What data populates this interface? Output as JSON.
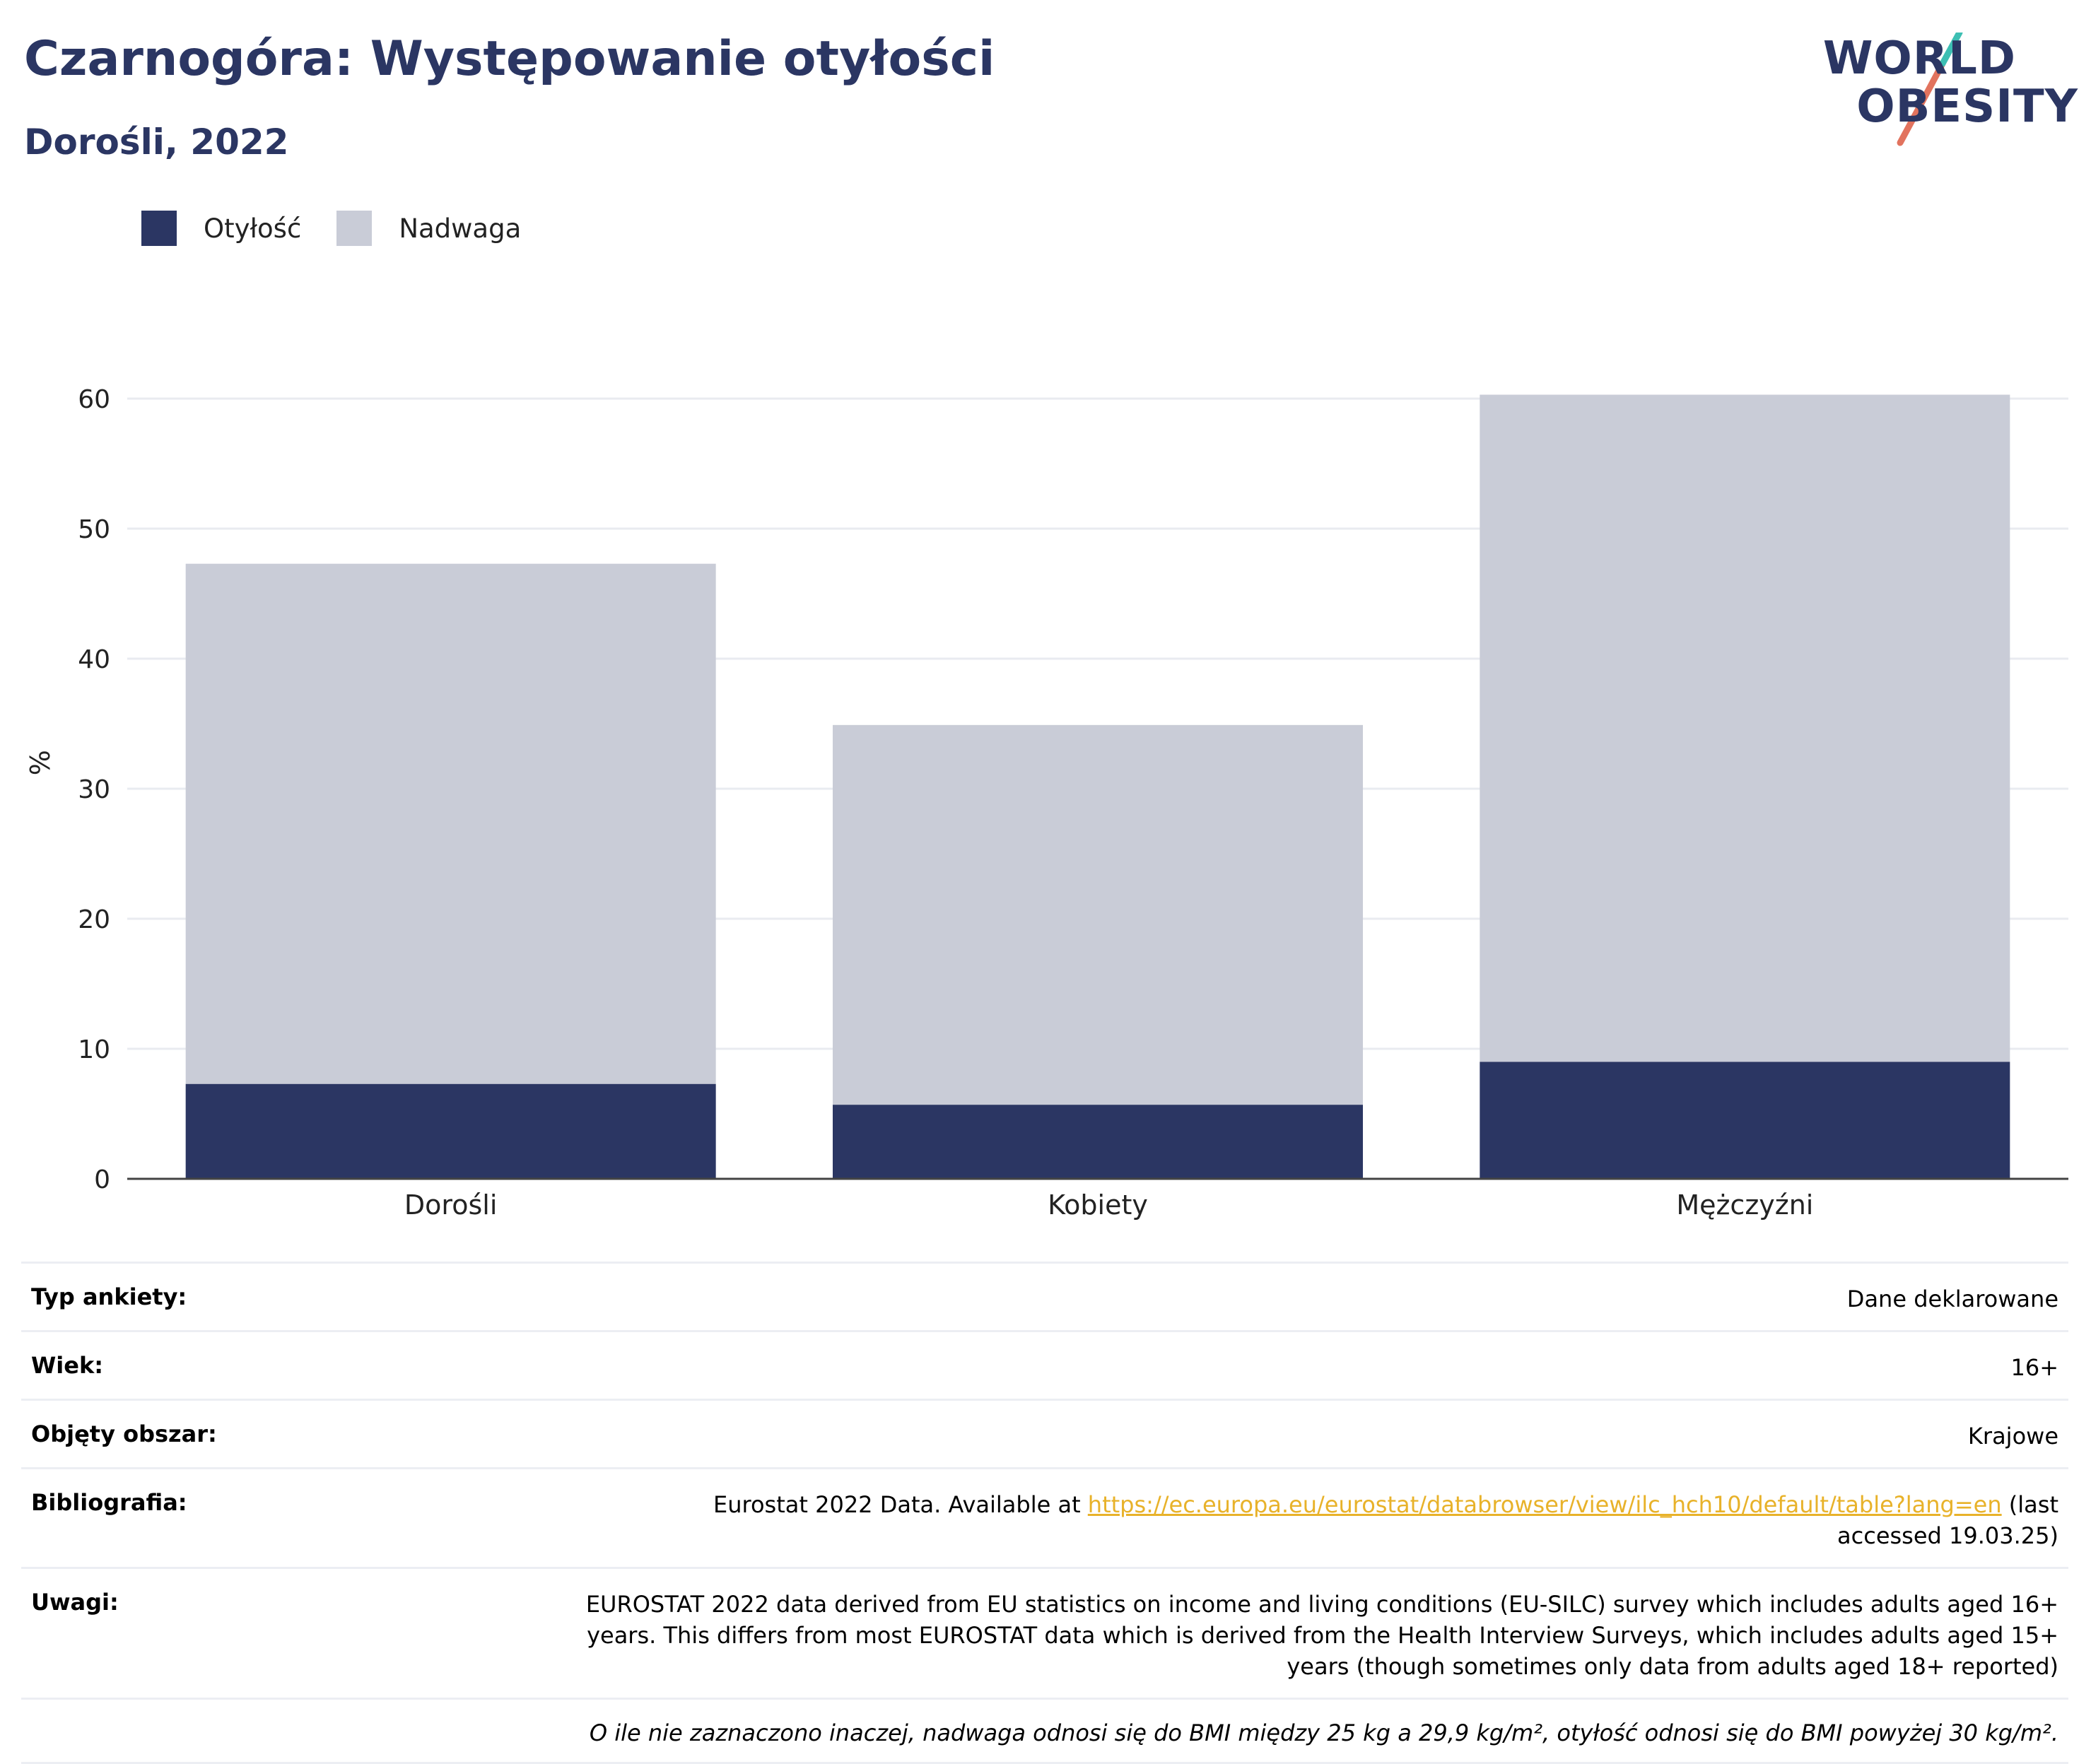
{
  "header": {
    "title": "Czarnogóra: Występowanie otyłości",
    "subtitle": "Dorośli, 2022"
  },
  "logo": {
    "line1": "WORLD",
    "line2": "OBESITY",
    "slash_colors": [
      "#3dbfb3",
      "#e2735e"
    ]
  },
  "colors": {
    "obesity": "#2b3663",
    "overweight": "#c9ccd7",
    "grid": "#e9ebf0",
    "axis": "#444444",
    "title": "#2b3663",
    "link": "#e8b22a"
  },
  "chart_data": {
    "type": "bar",
    "stacked": true,
    "categories": [
      "Dorośli",
      "Kobiety",
      "Mężczyźni"
    ],
    "series": [
      {
        "name": "Otyłość",
        "values": [
          7.3,
          5.7,
          9.0
        ]
      },
      {
        "name": "Nadwaga",
        "values": [
          40.0,
          29.2,
          51.3
        ]
      }
    ],
    "ylabel": "%",
    "ylim": [
      0,
      65
    ],
    "yticks": [
      0,
      10,
      20,
      30,
      40,
      50,
      60
    ],
    "grid": true,
    "legend": "top-left"
  },
  "info": {
    "rows": [
      {
        "label": "Typ ankiety:",
        "value": "Dane deklarowane"
      },
      {
        "label": "Wiek:",
        "value": "16+"
      },
      {
        "label": "Objęty obszar:",
        "value": "Krajowe"
      }
    ],
    "bibliography": {
      "label": "Bibliografia:",
      "prefix": "Eurostat 2022 Data. Available at ",
      "link": "https://ec.europa.eu/eurostat/databrowser/view/ilc_hch10/default/table?lang=en",
      "suffix": " (last accessed 19.03.25)"
    },
    "notes": {
      "label": "Uwagi:",
      "value": "EUROSTAT 2022 data derived from EU statistics on income and living conditions (EU-SILC) survey which includes adults aged 16+ years. This differs from most EUROSTAT data which is derived from the Health Interview Surveys, which includes adults aged 15+ years (though sometimes only data from adults aged 18+ reported)"
    },
    "footnote": "O ile nie zaznaczono inaczej, nadwaga odnosi się do BMI między 25 kg a 29,9 kg/m², otyłość odnosi się do BMI powyżej 30 kg/m²."
  }
}
